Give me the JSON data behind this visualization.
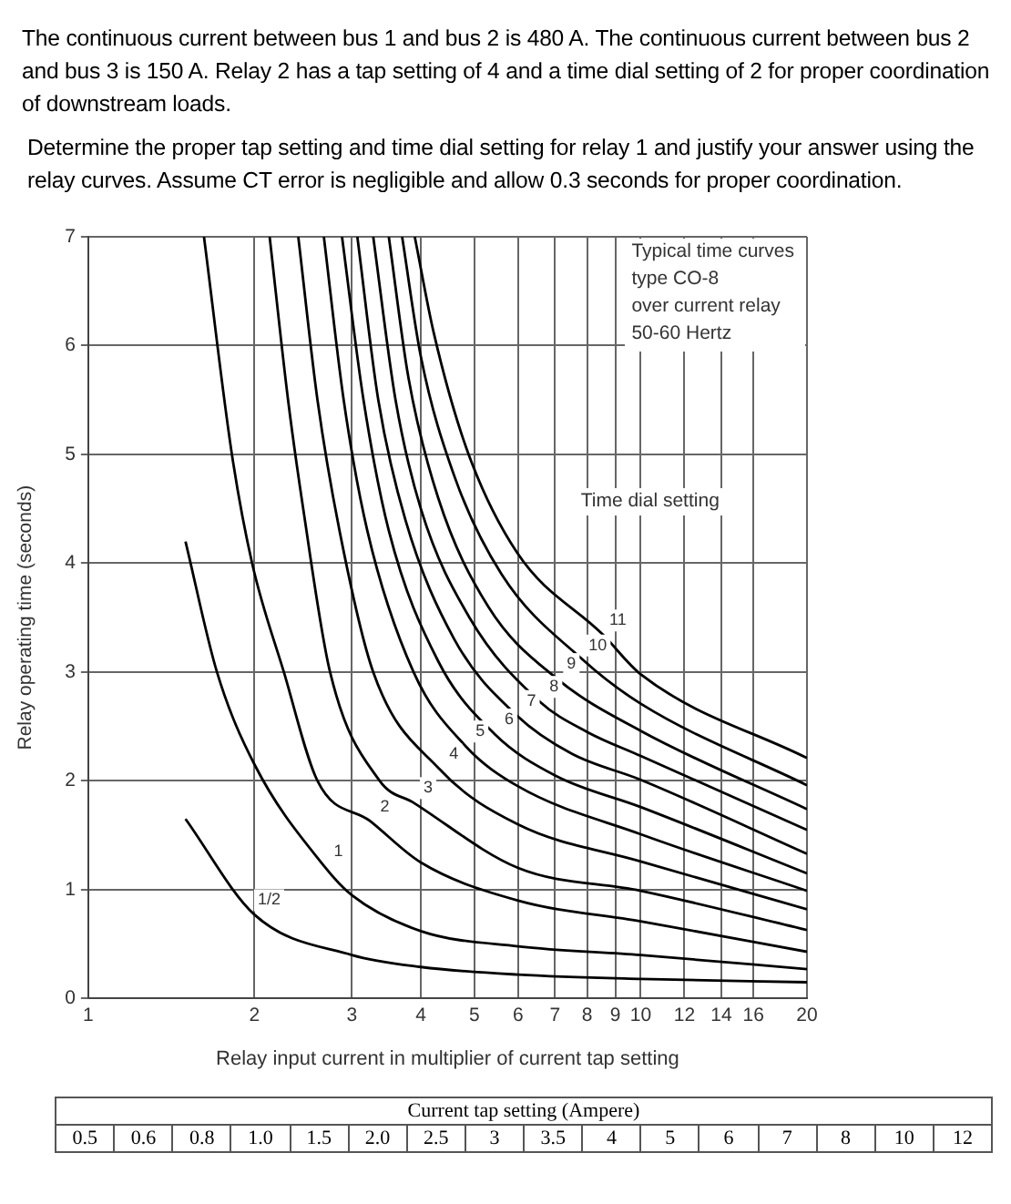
{
  "chart_data": {
    "type": "line",
    "title": "The continuous current between bus 1 and bus 2 is 480 A. The continuous current between bus 2 and bus 3 is 150 A. Relay 2 has a tap setting of 4 and a time dial setting of 2 for proper coordination of downstream loads.",
    "subtitle": "Determine the proper tap setting and time dial setting for relay 1 and justify your answer using the relay curves. Assume CT error is negligible and allow 0.3 seconds for proper coordination.",
    "xlabel": "Relay input current in multiplier of current tap setting",
    "ylabel": "Relay operating time (seconds)",
    "log": "x",
    "xlim": [
      1,
      20
    ],
    "xticks": [
      1,
      2,
      3,
      4,
      5,
      6,
      7,
      8,
      9,
      10,
      12,
      14,
      16,
      20
    ],
    "ylim": [
      0,
      7
    ],
    "yticks": [
      0,
      1,
      2,
      3,
      4,
      5,
      6,
      7
    ],
    "grid": true,
    "legend": false,
    "marker": "none",
    "line_style": "solid",
    "series": [
      {
        "color": "#000000",
        "x": [
          1.5,
          2,
          3,
          4,
          6,
          10,
          20
        ],
        "values": [
          1.65,
          0.77,
          0.4,
          0.29,
          0.22,
          0.18,
          0.15
        ]
      },
      {
        "color": "#000000",
        "x": [
          1.5,
          1.71,
          2,
          2.67,
          3,
          4,
          6,
          10,
          20
        ],
        "values": [
          4.2,
          3,
          2.15,
          1.22,
          0.95,
          0.62,
          0.48,
          0.4,
          0.27
        ]
      },
      {
        "color": "#000000",
        "x": [
          1.62,
          1.82,
          1.98,
          2.26,
          2.6,
          3.24,
          4,
          6,
          10,
          20
        ],
        "values": [
          7,
          5,
          4,
          3,
          2,
          1.63,
          1.25,
          0.9,
          0.71,
          0.43
        ]
      },
      {
        "color": "#000000",
        "x": [
          2.13,
          2.3,
          2.45,
          2.74,
          3.37,
          3.88,
          6,
          10,
          20
        ],
        "values": [
          7,
          5.5,
          4.5,
          3,
          2,
          1.8,
          1.2,
          0.99,
          0.63
        ]
      },
      {
        "color": "#000000",
        "x": [
          2.4,
          2.6,
          2.85,
          3.28,
          4.32,
          6,
          10,
          20
        ],
        "values": [
          7,
          5.5,
          4.3,
          3,
          2.11,
          1.6,
          1.26,
          0.82
        ]
      },
      {
        "color": "#000000",
        "x": [
          2.67,
          2.9,
          3.2,
          3.88,
          4.82,
          6,
          10,
          20
        ],
        "values": [
          7,
          5.5,
          4.3,
          3,
          2.32,
          1.95,
          1.51,
          0.99
        ]
      },
      {
        "color": "#000000",
        "x": [
          2.88,
          3.15,
          3.5,
          4.3,
          5.44,
          7,
          10,
          20
        ],
        "values": [
          7,
          5.5,
          4.3,
          3.1,
          2.43,
          2.05,
          1.76,
          1.15
        ]
      },
      {
        "color": "#000000",
        "x": [
          3.07,
          3.35,
          3.75,
          4.6,
          5.97,
          7.5,
          10,
          20
        ],
        "values": [
          7,
          5.5,
          4.4,
          3.3,
          2.6,
          2.25,
          2.01,
          1.33
        ]
      },
      {
        "color": "#000000",
        "x": [
          3.28,
          3.6,
          4,
          4.9,
          6.56,
          8,
          10,
          20
        ],
        "values": [
          7,
          5.5,
          4.5,
          3.5,
          2.73,
          2.45,
          2.23,
          1.55
        ]
      },
      {
        "color": "#000000",
        "x": [
          3.5,
          3.8,
          4.3,
          5.3,
          7.05,
          10,
          20
        ],
        "values": [
          7,
          5.7,
          4.6,
          3.6,
          2.94,
          2.46,
          1.74
        ]
      },
      {
        "color": "#000000",
        "x": [
          3.7,
          4,
          4.6,
          5.6,
          7.87,
          10,
          20
        ],
        "values": [
          7,
          5.9,
          4.8,
          3.9,
          3.11,
          2.71,
          1.96
        ]
      },
      {
        "color": "#000000",
        "x": [
          3.9,
          4.22,
          4.85,
          5.97,
          8.56,
          10,
          20
        ],
        "values": [
          7,
          6.12,
          5.04,
          4.1,
          3.34,
          2.98,
          2.21
        ]
      }
    ],
    "annotations": [
      "Typical time curves\ntype CO-8\nover current relay\n50-60 Hertz",
      "Time dial setting",
      "Current tap setting (Ampere)",
      "0.5",
      "0.6",
      "0.8",
      "1.0",
      "1.5",
      "2.0",
      "2.5",
      "3",
      "3.5",
      "4",
      "5",
      "6",
      "7",
      "8",
      "10",
      "12",
      {
        "text": "1/2",
        "x": 2,
        "y": 0.77
      },
      {
        "text": "1",
        "x": 2.67,
        "y": 1.22
      },
      {
        "text": "2",
        "x": 3.24,
        "y": 1.63
      },
      {
        "text": "3",
        "x": 3.88,
        "y": 1.8
      },
      {
        "text": "4",
        "x": 4.32,
        "y": 2.11
      },
      {
        "text": "5",
        "x": 4.82,
        "y": 2.32
      },
      {
        "text": "6",
        "x": 5.44,
        "y": 2.43
      },
      {
        "text": "7",
        "x": 5.97,
        "y": 2.6
      },
      {
        "text": "8",
        "x": 6.56,
        "y": 2.73
      },
      {
        "text": "9",
        "x": 7.05,
        "y": 2.94
      },
      {
        "text": "10",
        "x": 7.87,
        "y": 3.11
      },
      {
        "text": "11",
        "x": 8.56,
        "y": 3.34
      }
    ]
  }
}
